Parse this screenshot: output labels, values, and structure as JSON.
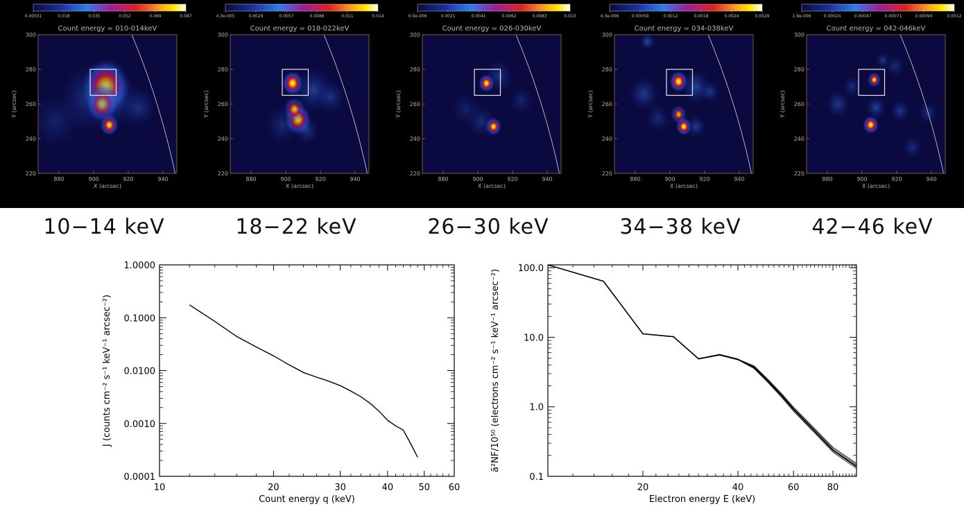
{
  "panels": [
    {
      "title": "Count energy = 010-014keV",
      "colorbar_ticks": [
        "0.00031",
        "0.018",
        "0.035",
        "0.052",
        "0.069",
        "0.087"
      ],
      "caption": "10−14  keV"
    },
    {
      "title": "Count energy = 018-022keV",
      "colorbar_ticks": [
        "4.3e-005",
        "0.0029",
        "0.0057",
        "0.0086",
        "0.011",
        "0.014"
      ],
      "caption": "18−22  keV"
    },
    {
      "title": "Count energy = 026-030keV",
      "colorbar_ticks": [
        "9.0e-006",
        "0.0021",
        "0.0041",
        "0.0062",
        "0.0083",
        "0.010"
      ],
      "caption": "26−30  keV"
    },
    {
      "title": "Count energy = 034-038keV",
      "colorbar_ticks": [
        "4.3e-006",
        "0.00059",
        "0.0012",
        "0.0018",
        "0.0024",
        "0.0029"
      ],
      "caption": "34−38  keV"
    },
    {
      "title": "Count energy = 042-046keV",
      "colorbar_ticks": [
        "1.9e-006",
        "0.00024",
        "0.00047",
        "0.00071",
        "0.00094",
        "0.0012"
      ],
      "caption": "42−46  keV"
    }
  ],
  "map_axes": {
    "xlabel": "X (arcsec)",
    "ylabel": "Y (arcsec)",
    "xticks": [
      "880",
      "900",
      "920",
      "940"
    ],
    "yticks": [
      "300",
      "280",
      "260",
      "240",
      "220"
    ]
  },
  "chart_data": [
    {
      "type": "line",
      "xlabel": "Count energy q (keV)",
      "ylabel": "J (counts cm⁻² s⁻¹ keV⁻¹ arcsec⁻²)",
      "xscale": "log",
      "yscale": "log",
      "xlim": [
        10,
        60
      ],
      "ylim": [
        0.0001,
        1.0
      ],
      "xticks": [
        "10",
        "20",
        "30",
        "40",
        "50",
        "60"
      ],
      "yticks": [
        "1.0000",
        "0.1000",
        "0.0100",
        "0.0010",
        "0.0001"
      ],
      "series": [
        {
          "x": [
            12,
            14,
            16,
            18,
            20,
            22,
            24,
            26,
            28,
            30,
            32,
            34,
            36,
            38,
            40,
            42,
            44,
            46,
            48
          ],
          "y": [
            0.175,
            0.085,
            0.044,
            0.028,
            0.019,
            0.0128,
            0.0092,
            0.0075,
            0.0063,
            0.0052,
            0.0041,
            0.0032,
            0.0024,
            0.0017,
            0.00115,
            0.0009,
            0.00075,
            0.00042,
            0.00023
          ]
        }
      ]
    },
    {
      "type": "line",
      "xlabel": "Electron energy E (keV)",
      "ylabel": "ā²NF/10⁵⁰ (electrons cm⁻² s⁻¹ keV⁻¹ arcsec⁻²)",
      "xscale": "log",
      "yscale": "log",
      "xlim": [
        10,
        95
      ],
      "ylim": [
        0.1,
        110
      ],
      "xticks": [
        "20",
        "40",
        "60",
        "80"
      ],
      "yticks": [
        "100.0",
        "10.0",
        "1.0",
        "0.1"
      ],
      "series": [
        {
          "x": [
            10,
            15,
            20,
            25,
            30,
            35,
            40,
            45,
            50,
            55,
            60,
            70,
            80,
            95
          ],
          "y": [
            110,
            64,
            11.2,
            10.2,
            4.9,
            5.6,
            4.8,
            3.7,
            2.3,
            1.45,
            0.92,
            0.45,
            0.24,
            0.14
          ]
        }
      ]
    }
  ]
}
